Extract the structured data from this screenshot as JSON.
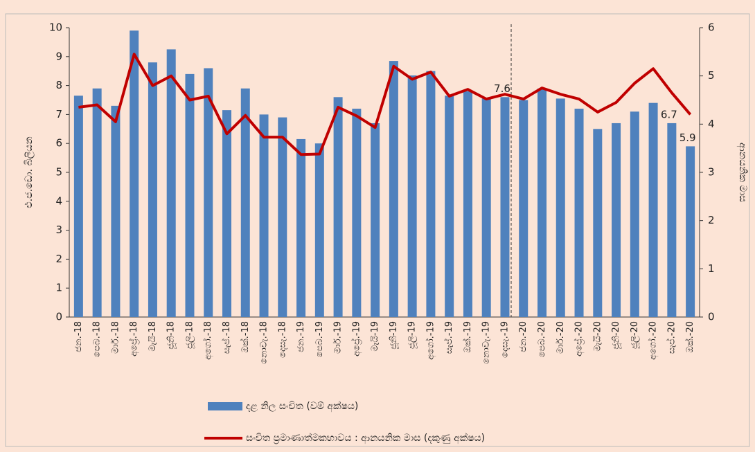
{
  "chart_data": {
    "type": "bar_line",
    "categories": [
      "ජන.-18",
      "පෙබ.-18",
      "මාර්.-18",
      "අප්‍රේ.-18",
      "මැයි-18",
      "ජූනි-18",
      "ජූලි-18",
      "අගෝ.-18",
      "සැප්.-18",
      "ඔක්.-18",
      "නොවැ.-18",
      "දෙසැ.-18",
      "ජන.-19",
      "පෙබ.-19",
      "මාර්.-19",
      "අප්‍රේ.-19",
      "මැයි-19",
      "ජූනි-19",
      "ජූලි-19",
      "අගෝ.-19",
      "සැප්.-19",
      "ඔක්.-19",
      "නොවැ.-19",
      "දෙසැ.-19",
      "ජන.-20",
      "පෙබ.-20",
      "මාර්.-20",
      "අප්‍රේ.-20",
      "මැයි-20",
      "ජූනි-20",
      "ජූලි-20",
      "අගෝ.-20",
      "සැප්.-20",
      "ඔක්.-20"
    ],
    "series": [
      {
        "name": "දළ නිල සංචිත (වම් අක්ෂය)",
        "color": "#4f81bd",
        "kind": "bar",
        "values": [
          7.65,
          7.9,
          7.3,
          9.9,
          8.8,
          9.25,
          8.4,
          8.6,
          7.15,
          7.9,
          7.0,
          6.9,
          6.15,
          6.0,
          7.6,
          7.2,
          6.7,
          8.85,
          8.35,
          8.5,
          7.65,
          7.8,
          7.55,
          7.6,
          7.5,
          7.9,
          7.55,
          7.2,
          6.5,
          6.7,
          7.1,
          7.4,
          6.7,
          5.9
        ],
        "value_labels": [
          null,
          null,
          null,
          null,
          null,
          null,
          null,
          null,
          null,
          null,
          null,
          null,
          null,
          null,
          null,
          null,
          null,
          null,
          null,
          null,
          null,
          null,
          null,
          "7.6",
          null,
          null,
          null,
          null,
          null,
          null,
          null,
          null,
          "6.7",
          "5.9"
        ]
      },
      {
        "name": "සංචිත ප්‍රමාණාත්මකභාවය : ආනයනික මාස (දකුණු අක්ෂය)",
        "color": "#c00000",
        "kind": "line",
        "axis": "y2",
        "values": [
          4.35,
          4.4,
          4.05,
          5.45,
          4.8,
          5.0,
          4.5,
          4.58,
          3.8,
          4.18,
          3.73,
          3.73,
          3.37,
          3.38,
          4.35,
          4.17,
          3.93,
          5.2,
          4.93,
          5.08,
          4.58,
          4.72,
          4.52,
          4.62,
          4.52,
          4.75,
          4.62,
          4.52,
          4.25,
          4.45,
          4.85,
          5.15,
          4.65,
          4.2
        ]
      }
    ],
    "ylabel": "එ.ජ.ඩො. බිලියන",
    "y2label": "ආනයනික මාස",
    "ylim": [
      0,
      10
    ],
    "yticks": [
      0,
      1,
      2,
      3,
      4,
      5,
      6,
      7,
      8,
      9,
      10
    ],
    "y2lim": [
      0,
      6
    ],
    "y2ticks": [
      0,
      1,
      2,
      3,
      4,
      5,
      6
    ]
  }
}
